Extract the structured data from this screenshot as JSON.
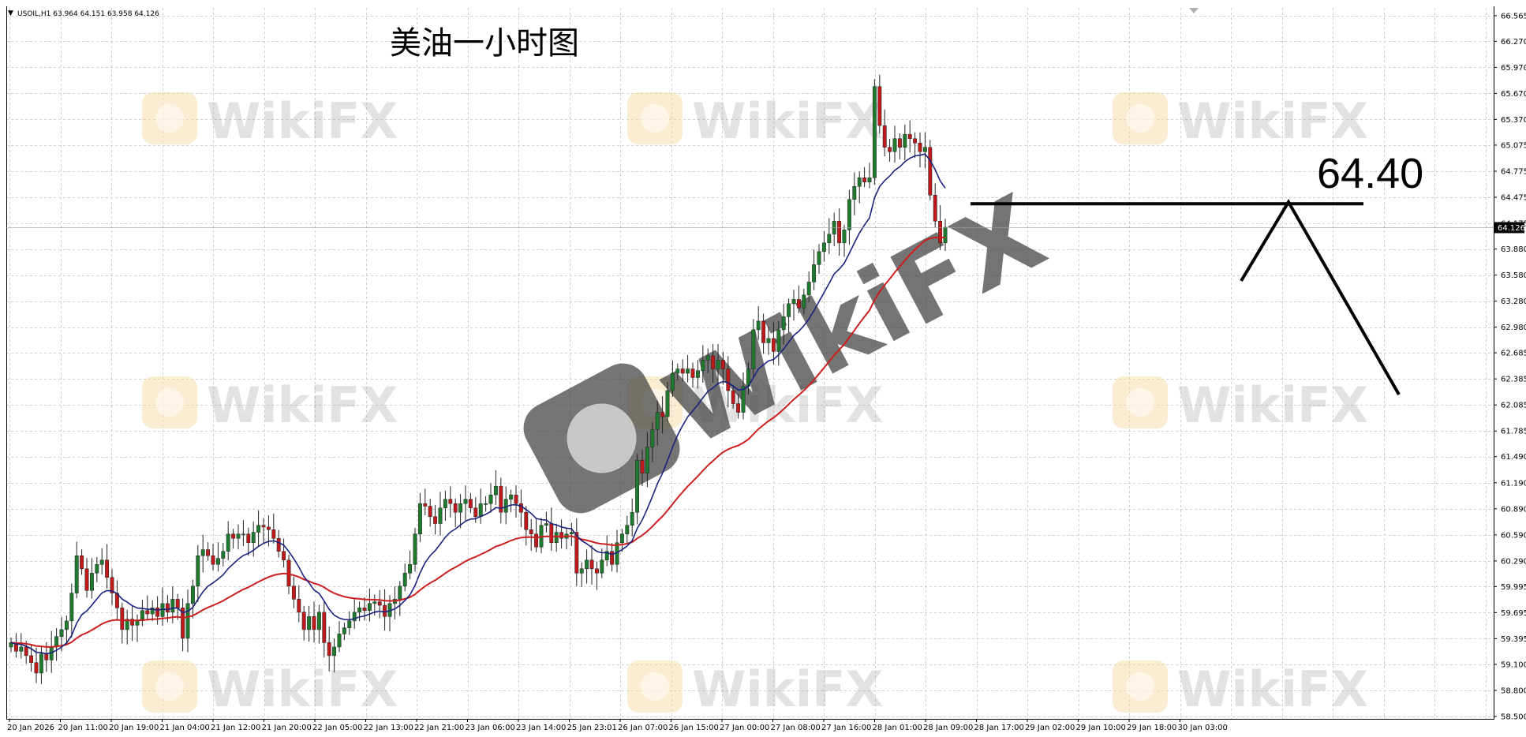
{
  "header": {
    "caret": "▼",
    "text": "USOIL,H1  63.964 64.151 63.958 64.126"
  },
  "title": "美油一小时图",
  "watermark": "WikiFX",
  "annotation": {
    "label": "64.40",
    "level": 64.4
  },
  "current_price": "64.126",
  "chart_data": {
    "type": "candlestick",
    "symbol": "USOIL",
    "timeframe": "H1",
    "ohlc_latest": {
      "open": 63.964,
      "high": 64.151,
      "low": 63.958,
      "close": 64.126
    },
    "ylim": [
      58.5,
      66.6
    ],
    "y_ticks": [
      "66.565",
      "66.270",
      "65.970",
      "65.670",
      "65.370",
      "65.075",
      "64.775",
      "64.475",
      "64.175",
      "63.880",
      "63.580",
      "63.280",
      "62.980",
      "62.685",
      "62.385",
      "62.085",
      "61.785",
      "61.490",
      "61.190",
      "60.890",
      "60.590",
      "60.290",
      "59.995",
      "59.695",
      "59.395",
      "59.100",
      "58.800",
      "58.500"
    ],
    "x_ticks": [
      "20 Jan 2026",
      "20 Jan 11:00",
      "20 Jan 19:00",
      "21 Jan 04:00",
      "21 Jan 12:00",
      "21 Jan 20:00",
      "22 Jan 05:00",
      "22 Jan 13:00",
      "22 Jan 21:00",
      "23 Jan 06:00",
      "23 Jan 14:00",
      "25 Jan 23:01",
      "26 Jan 07:00",
      "26 Jan 15:00",
      "27 Jan 00:00",
      "27 Jan 08:00",
      "27 Jan 16:00",
      "28 Jan 01:00",
      "28 Jan 09:00",
      "28 Jan 17:00",
      "29 Jan 02:00",
      "29 Jan 10:00",
      "29 Jan 18:00",
      "30 Jan 03:00"
    ],
    "closes": [
      59.35,
      59.25,
      59.3,
      59.2,
      59.12,
      59.0,
      59.22,
      59.15,
      59.3,
      59.42,
      59.5,
      59.6,
      59.92,
      60.35,
      60.2,
      59.95,
      60.15,
      60.25,
      60.3,
      60.1,
      59.92,
      59.75,
      59.5,
      59.62,
      59.55,
      59.6,
      59.72,
      59.68,
      59.75,
      59.65,
      59.8,
      59.7,
      59.85,
      59.75,
      59.4,
      59.8,
      60.0,
      60.35,
      60.42,
      60.35,
      60.25,
      60.32,
      60.4,
      60.6,
      60.55,
      60.6,
      60.6,
      60.5,
      60.62,
      60.7,
      60.68,
      60.65,
      60.55,
      60.4,
      60.3,
      60.0,
      59.85,
      59.7,
      59.5,
      59.65,
      59.5,
      59.7,
      59.35,
      59.2,
      59.3,
      59.45,
      59.52,
      59.6,
      59.7,
      59.75,
      59.72,
      59.8,
      59.82,
      59.78,
      59.65,
      59.8,
      59.85,
      60.0,
      60.15,
      60.25,
      60.6,
      60.95,
      60.92,
      60.8,
      60.72,
      60.9,
      61.0,
      60.95,
      60.85,
      60.95,
      61.0,
      60.9,
      60.8,
      60.95,
      60.95,
      61.05,
      61.15,
      60.85,
      61.0,
      61.05,
      60.95,
      60.85,
      60.65,
      60.6,
      60.45,
      60.7,
      60.72,
      60.5,
      60.62,
      60.55,
      60.6,
      60.62,
      60.15,
      60.2,
      60.3,
      60.2,
      60.15,
      60.3,
      60.4,
      60.25,
      60.5,
      60.6,
      60.7,
      60.85,
      61.45,
      61.3,
      61.6,
      61.8,
      62.0,
      61.95,
      62.25,
      62.45,
      62.5,
      62.45,
      62.5,
      62.4,
      62.48,
      62.6,
      62.65,
      62.5,
      62.6,
      62.5,
      62.25,
      62.1,
      62.0,
      62.3,
      62.5,
      62.95,
      63.05,
      62.8,
      62.85,
      62.7,
      62.95,
      63.1,
      63.25,
      63.3,
      63.2,
      63.35,
      63.5,
      63.7,
      63.85,
      63.95,
      64.05,
      64.2,
      63.95,
      64.1,
      64.45,
      64.6,
      64.7,
      64.65,
      64.7,
      65.75,
      65.3,
      65.05,
      65.0,
      65.15,
      65.05,
      65.2,
      65.15,
      65.1,
      65.0,
      65.05,
      64.5,
      64.2,
      63.95,
      64.13
    ]
  }
}
